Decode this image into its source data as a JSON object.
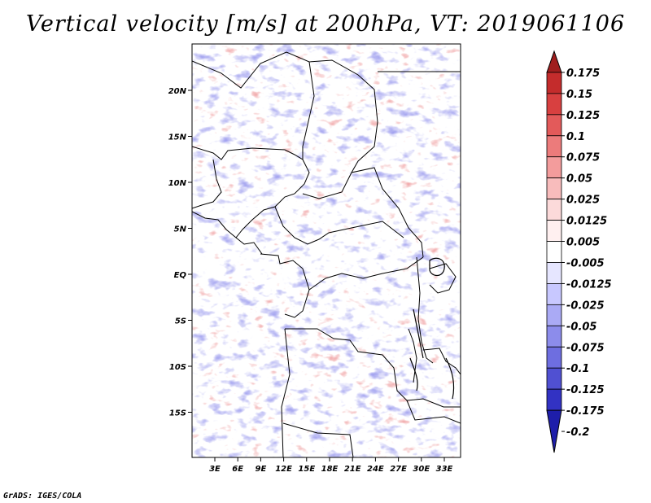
{
  "title": "Vertical velocity [m/s] at 200hPa, VT: 2019061106",
  "credit": "GrADS: IGES/COLA",
  "map": {
    "lon_ticks": [
      "3E",
      "6E",
      "9E",
      "12E",
      "15E",
      "18E",
      "21E",
      "24E",
      "27E",
      "30E",
      "33E"
    ],
    "lat_ticks": [
      "20N",
      "15N",
      "10N",
      "5N",
      "EQ",
      "5S",
      "10S",
      "15S"
    ]
  },
  "colorbar": {
    "levels": [
      "0.175",
      "0.15",
      "0.125",
      "0.1",
      "0.075",
      "0.05",
      "0.025",
      "0.0125",
      "0.005",
      "-0.005",
      "-0.0125",
      "-0.025",
      "-0.05",
      "-0.075",
      "-0.1",
      "-0.125",
      "-0.175",
      "-0.2"
    ],
    "colors": [
      "#a01e1e",
      "#c42c2c",
      "#d84040",
      "#e35a5a",
      "#ec7b7b",
      "#f39c9c",
      "#f8bcbc",
      "#fcdada",
      "#fff0f0",
      "#ffffff",
      "#e6e6ff",
      "#c8c8ff",
      "#aaaaf5",
      "#8c8ceb",
      "#6e6ee0",
      "#5050d2",
      "#3232c3",
      "#1e1eaa"
    ]
  }
}
